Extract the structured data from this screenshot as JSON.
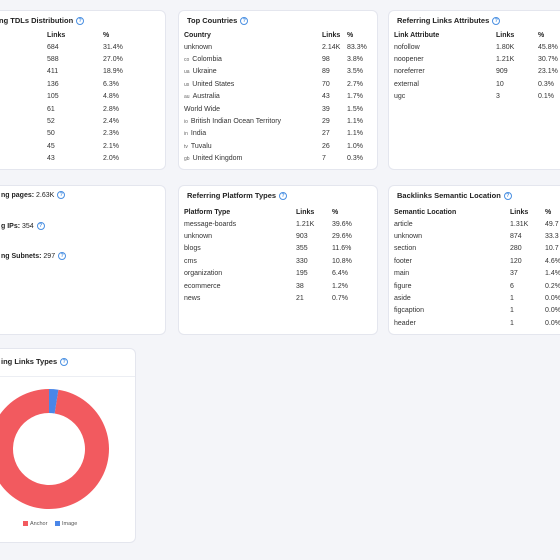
{
  "colors": {
    "anchor": "#f25a5f",
    "image": "#4a86e8",
    "info": "#4a90e2"
  },
  "tlds": {
    "title": "ng TDLs Distribution",
    "headers": [
      "Links",
      "%"
    ],
    "rows": [
      [
        "684",
        "31.4%"
      ],
      [
        "588",
        "27.0%"
      ],
      [
        "411",
        "18.9%"
      ],
      [
        "136",
        "6.3%"
      ],
      [
        "105",
        "4.8%"
      ],
      [
        "61",
        "2.8%"
      ],
      [
        "52",
        "2.4%"
      ],
      [
        "50",
        "2.3%"
      ],
      [
        "45",
        "2.1%"
      ],
      [
        "43",
        "2.0%"
      ]
    ]
  },
  "countries": {
    "title": "Top Countries",
    "headers": [
      "Country",
      "Links",
      "%"
    ],
    "rows": [
      {
        "flag": "",
        "name": "unknown",
        "links": "2.14K",
        "pct": "83.3%"
      },
      {
        "flag": "co",
        "name": "Colombia",
        "links": "98",
        "pct": "3.8%"
      },
      {
        "flag": "ua",
        "name": "Ukraine",
        "links": "89",
        "pct": "3.5%"
      },
      {
        "flag": "us",
        "name": "United States",
        "links": "70",
        "pct": "2.7%"
      },
      {
        "flag": "au",
        "name": "Australia",
        "links": "43",
        "pct": "1.7%"
      },
      {
        "flag": "",
        "name": "World Wide",
        "links": "39",
        "pct": "1.5%"
      },
      {
        "flag": "io",
        "name": "British Indian Ocean Territory",
        "links": "29",
        "pct": "1.1%"
      },
      {
        "flag": "in",
        "name": "India",
        "links": "27",
        "pct": "1.1%"
      },
      {
        "flag": "tv",
        "name": "Tuvalu",
        "links": "26",
        "pct": "1.0%"
      },
      {
        "flag": "gb",
        "name": "United Kingdom",
        "links": "7",
        "pct": "0.3%"
      }
    ]
  },
  "attributes": {
    "title": "Referring Links Attributes",
    "headers": [
      "Link Attribute",
      "Links",
      "%"
    ],
    "rows": [
      [
        "nofollow",
        "1.80K",
        "45.8%"
      ],
      [
        "noopener",
        "1.21K",
        "30.7%"
      ],
      [
        "noreferrer",
        "909",
        "23.1%"
      ],
      [
        "external",
        "10",
        "0.3%"
      ],
      [
        "ugc",
        "3",
        "0.1%"
      ]
    ]
  },
  "summary": {
    "pages_label": "ng pages:",
    "pages_value": "2.63K",
    "ips_label": "g IPs:",
    "ips_value": "354",
    "subnets_label": "ng Subnets:",
    "subnets_value": "297"
  },
  "platforms": {
    "title": "Referring Platform Types",
    "headers": [
      "Platform Type",
      "Links",
      "%"
    ],
    "rows": [
      [
        "message-boards",
        "1.21K",
        "39.6%"
      ],
      [
        "unknown",
        "903",
        "29.6%"
      ],
      [
        "blogs",
        "355",
        "11.6%"
      ],
      [
        "cms",
        "330",
        "10.8%"
      ],
      [
        "organization",
        "195",
        "6.4%"
      ],
      [
        "ecommerce",
        "38",
        "1.2%"
      ],
      [
        "news",
        "21",
        "0.7%"
      ]
    ]
  },
  "semantic": {
    "title": "Backlinks Semantic Location",
    "headers": [
      "Semantic Location",
      "Links",
      "%"
    ],
    "rows": [
      [
        "article",
        "1.31K",
        "49.7"
      ],
      [
        "unknown",
        "874",
        "33.3"
      ],
      [
        "section",
        "280",
        "10.7"
      ],
      [
        "footer",
        "120",
        "4.6%"
      ],
      [
        "main",
        "37",
        "1.4%"
      ],
      [
        "figure",
        "6",
        "0.2%"
      ],
      [
        "aside",
        "1",
        "0.0%"
      ],
      [
        "figcaption",
        "1",
        "0.0%"
      ],
      [
        "header",
        "1",
        "0.0%"
      ]
    ]
  },
  "link_types": {
    "title": "ing Links Types",
    "legend": [
      "Anchor",
      "Image"
    ]
  },
  "chart_data": {
    "type": "pie",
    "categories": [
      "Anchor",
      "Image"
    ],
    "values": [
      97.5,
      2.5
    ]
  }
}
